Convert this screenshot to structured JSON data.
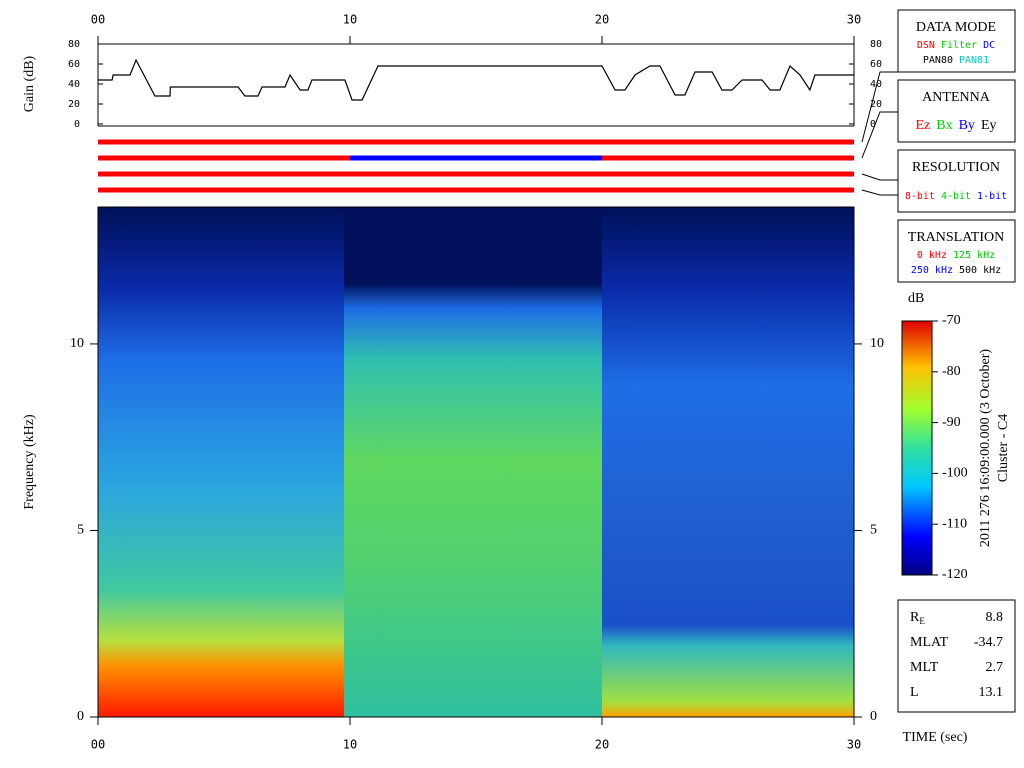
{
  "chart_data": [
    {
      "type": "line",
      "ylabel": "Gain (dB)",
      "color": "#000000",
      "xlim": [
        0,
        30
      ],
      "xticks": [
        {
          "value": 0,
          "label": "00"
        },
        10,
        20,
        30
      ],
      "ylim": [
        0,
        80
      ],
      "yticks": [
        0,
        20,
        40,
        60,
        80
      ],
      "x": [
        0,
        0.56,
        0.6,
        1.27,
        1.51,
        2.26,
        2.86,
        2.87,
        5.56,
        5.83,
        6.35,
        6.51,
        7.42,
        7.62,
        8.02,
        8.33,
        8.49,
        9.8,
        10.08,
        10.48,
        11.11,
        20.0,
        20.52,
        20.91,
        21.31,
        21.9,
        22.3,
        22.9,
        23.29,
        23.69,
        24.37,
        24.76,
        25.16,
        25.56,
        26.35,
        26.67,
        27.06,
        27.46,
        27.86,
        28.25,
        28.45,
        30
      ],
      "values": [
        44,
        44,
        49,
        49,
        64,
        28,
        28,
        37,
        37,
        28,
        28,
        37,
        37,
        49,
        34,
        34,
        44,
        44,
        24,
        24,
        58,
        58,
        34,
        34,
        49,
        58,
        58,
        29,
        29,
        52,
        52,
        34,
        34,
        44,
        44,
        34,
        34,
        58,
        49,
        34,
        49,
        49
      ]
    },
    {
      "type": "heatmap",
      "xlabel": "TIME (sec)",
      "ylabel": "Frequency (kHz)",
      "xlim": [
        0,
        30
      ],
      "xticks": [
        {
          "value": 0,
          "label": "00"
        },
        10,
        20,
        30
      ],
      "ylim": [
        0,
        13.67
      ],
      "yticks": [
        0,
        5,
        10
      ],
      "colorbar": {
        "label": "dB",
        "lim": [
          -120,
          -70
        ],
        "ticks": [
          -70,
          -80,
          -90,
          -100,
          -110,
          -120
        ]
      },
      "annotations": [
        "2011 276 16:09:00.000 (3 October)",
        "Cluster - C4"
      ]
    }
  ],
  "status_bars": [
    {
      "segments": [
        {
          "start": 0,
          "end": 30,
          "color": "#ff0000"
        }
      ]
    },
    {
      "segments": [
        {
          "start": 0,
          "end": 10,
          "color": "#ff0000"
        },
        {
          "start": 10,
          "end": 20,
          "color": "#0000ff"
        },
        {
          "start": 20,
          "end": 30,
          "color": "#ff0000"
        }
      ]
    },
    {
      "segments": [
        {
          "start": 0,
          "end": 30,
          "color": "#ff0000"
        }
      ]
    },
    {
      "segments": [
        {
          "start": 0,
          "end": 30,
          "color": "#ff0000"
        }
      ]
    }
  ],
  "legend_boxes": [
    {
      "title": "DATA MODE",
      "rows": [
        [
          {
            "text": "DSN",
            "color": "#ff0000"
          },
          {
            "text": "Filter",
            "color": "#00cc00"
          },
          {
            "text": "DC",
            "color": "#0000ff"
          }
        ],
        [
          {
            "text": "PAN80",
            "color": "#000000"
          },
          {
            "text": "PAN81",
            "color": "#00cccc"
          }
        ]
      ]
    },
    {
      "title": "ANTENNA",
      "rows": [
        [
          {
            "text": "Ez",
            "color": "#ff0000"
          },
          {
            "text": "Bx",
            "color": "#00cc00"
          },
          {
            "text": "By",
            "color": "#0000ff"
          },
          {
            "text": "Ey",
            "color": "#000000"
          }
        ]
      ]
    },
    {
      "title": "RESOLUTION",
      "rows": [
        [
          {
            "text": "8-bit",
            "color": "#ff0000"
          },
          {
            "text": "4-bit",
            "color": "#00cc00"
          },
          {
            "text": "1-bit",
            "color": "#0000ff"
          }
        ]
      ]
    },
    {
      "title": "TRANSLATION",
      "rows": [
        [
          {
            "text": "0 kHz",
            "color": "#ff0000"
          },
          {
            "text": "125 kHz",
            "color": "#00cc00"
          }
        ],
        [
          {
            "text": "250 kHz",
            "color": "#0000ff"
          },
          {
            "text": "500 kHz",
            "color": "#000000"
          }
        ]
      ]
    }
  ],
  "parameters": [
    {
      "label": "R",
      "subscript": "E",
      "value": "8.8"
    },
    {
      "label": "MLAT",
      "value": "-34.7"
    },
    {
      "label": "MLT",
      "value": "2.7"
    },
    {
      "label": "L",
      "value": "13.1"
    }
  ]
}
